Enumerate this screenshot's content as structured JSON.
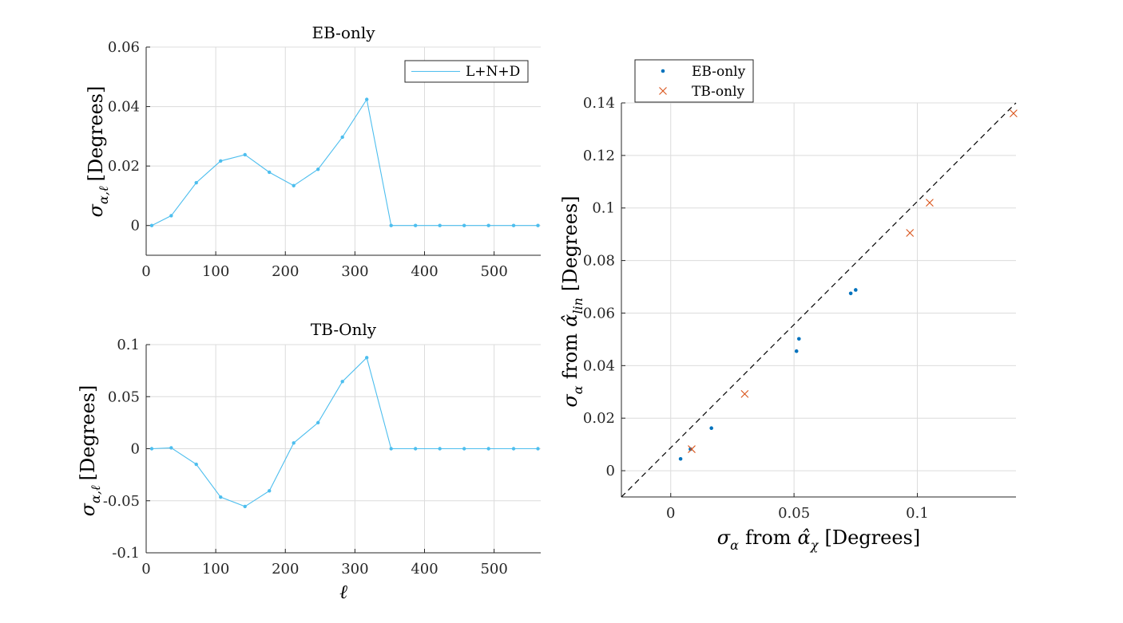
{
  "colors": {
    "cyan": "#4dbeee",
    "blue": "#0072bd",
    "orange": "#d95319",
    "dash": "#000000"
  },
  "chart_data": [
    {
      "id": "eb",
      "type": "line",
      "title": "EB-only",
      "ylabel": "σ_{α,ℓ} [Degrees]",
      "xlabel": "",
      "xlim": [
        0,
        567
      ],
      "ylim": [
        -0.01,
        0.06
      ],
      "xticks": [
        0,
        100,
        200,
        300,
        400,
        500
      ],
      "xtick_labels": [
        "0",
        "100",
        "200",
        "300",
        "400",
        "500"
      ],
      "yticks": [
        0,
        0.02,
        0.04,
        0.06
      ],
      "ytick_labels": [
        "0",
        "0.02",
        "0.04",
        "0.06"
      ],
      "grid": true,
      "legend": {
        "entries": [
          "L+N+D"
        ],
        "location": "top-right"
      },
      "series": [
        {
          "name": "L+N+D",
          "x": [
            8,
            36,
            72,
            107,
            142,
            177,
            212,
            247,
            282,
            317,
            352,
            387,
            422,
            457,
            492,
            528,
            563
          ],
          "y": [
            0,
            0.0033,
            0.0144,
            0.0217,
            0.0238,
            0.0179,
            0.0134,
            0.0189,
            0.0297,
            0.0424,
            0,
            0,
            0,
            0,
            0,
            0,
            0
          ]
        }
      ]
    },
    {
      "id": "tb",
      "type": "line",
      "title": "TB-Only",
      "ylabel": "σ_{α,ℓ} [Degrees]",
      "xlabel": "ℓ",
      "xlim": [
        0,
        567
      ],
      "ylim": [
        -0.1,
        0.1
      ],
      "xticks": [
        0,
        100,
        200,
        300,
        400,
        500
      ],
      "xtick_labels": [
        "0",
        "100",
        "200",
        "300",
        "400",
        "500"
      ],
      "yticks": [
        -0.1,
        -0.05,
        0,
        0.05,
        0.1
      ],
      "ytick_labels": [
        "-0.1",
        "-0.05",
        "0",
        "0.05",
        "0.1"
      ],
      "grid": true,
      "series": [
        {
          "x": [
            8,
            36,
            72,
            107,
            142,
            177,
            212,
            247,
            282,
            317,
            352,
            387,
            422,
            457,
            492,
            528,
            563
          ],
          "y": [
            0,
            0.0008,
            -0.015,
            -0.0465,
            -0.0555,
            -0.0405,
            0.0055,
            0.025,
            0.0645,
            0.0875,
            0,
            0,
            0,
            0,
            0,
            0,
            0
          ]
        }
      ]
    },
    {
      "id": "cmp",
      "type": "scatter",
      "title": "",
      "xlabel": "σ_α from α̂_χ [Degrees]",
      "ylabel": "σ_α from α̂_lin [Degrees]",
      "xlim": [
        -0.02,
        0.14
      ],
      "ylim": [
        -0.01,
        0.14
      ],
      "xticks": [
        0,
        0.05,
        0.1
      ],
      "xtick_labels": [
        "0",
        "0.05",
        "0.1"
      ],
      "yticks": [
        0,
        0.02,
        0.04,
        0.06,
        0.08,
        0.1,
        0.12,
        0.14
      ],
      "ytick_labels": [
        "0",
        "0.02",
        "0.04",
        "0.06",
        "0.08",
        "0.1",
        "0.12",
        "0.14"
      ],
      "grid": true,
      "legend": {
        "entries": [
          "EB-only",
          "TB-only"
        ],
        "location": "top-left-outside"
      },
      "series": [
        {
          "name": "EB-only",
          "marker": "dot",
          "x": [
            0.004,
            0.008,
            0.0165,
            0.051,
            0.052,
            0.073,
            0.075
          ],
          "y": [
            0.0045,
            0.0082,
            0.0162,
            0.0455,
            0.0502,
            0.0675,
            0.0688
          ]
        },
        {
          "name": "TB-only",
          "marker": "x",
          "x": [
            0.0085,
            0.03,
            0.097,
            0.105,
            0.139
          ],
          "y": [
            0.0082,
            0.0292,
            0.0905,
            0.102,
            0.136
          ]
        }
      ],
      "reference_line": {
        "style": "dashed",
        "x": [
          -0.02,
          0.14
        ],
        "y": [
          -0.01,
          0.14
        ]
      }
    }
  ]
}
